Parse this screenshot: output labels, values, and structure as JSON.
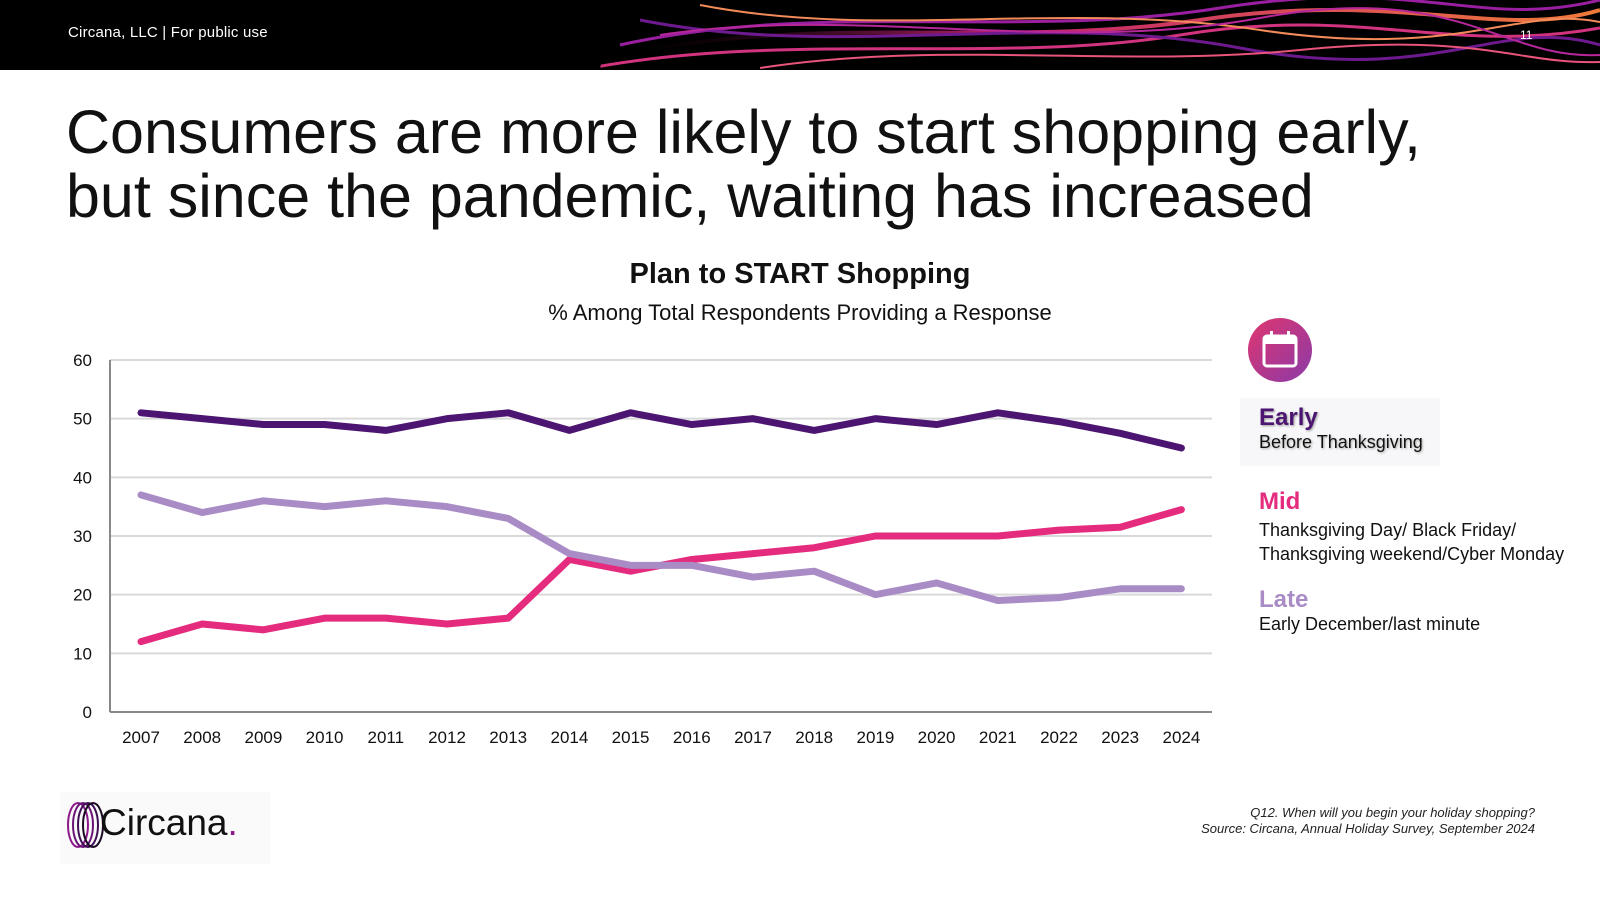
{
  "header": {
    "brand_text": "Circana, LLC |  For public use",
    "page_number": "11"
  },
  "headline": {
    "line1": "Consumers are more likely to start shopping early,",
    "line2": "but since the pandemic, waiting has increased"
  },
  "legend": {
    "early": {
      "name": "Early",
      "description": "Before Thanksgiving"
    },
    "mid": {
      "name": "Mid",
      "description_line1": "Thanksgiving Day/ Black Friday/",
      "description_line2": "Thanksgiving weekend/Cyber Monday"
    },
    "late": {
      "name": "Late",
      "description": "Early December/last minute"
    }
  },
  "footer": {
    "logo_text": "Circana",
    "logo_dot": ".",
    "question": "Q12. When will you begin your holiday shopping?",
    "source": "Source: Circana, Annual Holiday Survey, September 2024"
  },
  "icons": {
    "legend_badge": "calendar-icon",
    "logo_mark": "circana-rings-icon"
  },
  "chart_data": {
    "type": "line",
    "title": "Plan to START Shopping",
    "subtitle": "% Among Total Respondents Providing a Response",
    "x": [
      "2007",
      "2008",
      "2009",
      "2010",
      "2011",
      "2012",
      "2013",
      "2014",
      "2015",
      "2016",
      "2017",
      "2018",
      "2019",
      "2020",
      "2021",
      "2022",
      "2023",
      "2024"
    ],
    "ylim": [
      0,
      60
    ],
    "yticks": [
      0,
      10,
      20,
      30,
      40,
      50,
      60
    ],
    "grid": true,
    "legend_position": "right",
    "series": [
      {
        "name": "Early",
        "color": "#4b1571",
        "values": [
          51,
          50,
          49,
          49,
          48,
          50,
          51,
          48,
          51,
          49,
          50,
          48,
          50,
          49,
          51,
          49.5,
          47.5,
          45
        ]
      },
      {
        "name": "Mid",
        "color": "#e52b7e",
        "values": [
          12,
          15,
          14,
          16,
          16,
          15,
          16,
          26,
          24,
          26,
          27,
          28,
          30,
          30,
          30,
          31,
          31.5,
          34.5
        ]
      },
      {
        "name": "Late",
        "color": "#a98cc6",
        "values": [
          37,
          34,
          36,
          35,
          36,
          35,
          33,
          27,
          25,
          25,
          23,
          24,
          20,
          22,
          19,
          19.5,
          21,
          21
        ]
      }
    ]
  }
}
